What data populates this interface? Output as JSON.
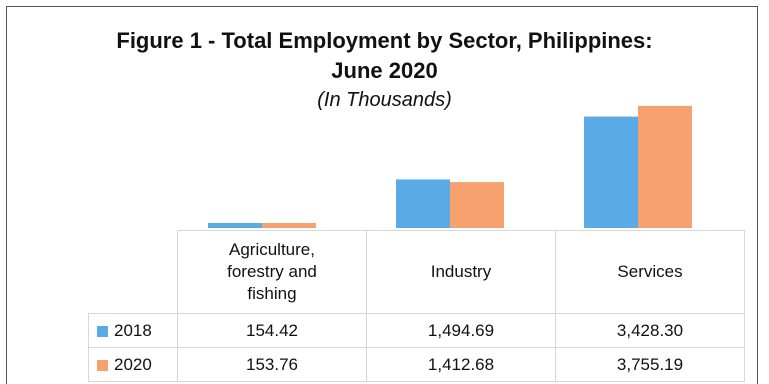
{
  "colors": {
    "s2018": "#5aaae6",
    "s2020": "#f7a26e"
  },
  "chart_data": {
    "type": "bar",
    "title": "Figure 1 - Total Employment by Sector, Philippines:",
    "title_line2": "June 2020",
    "subtitle": "(In Thousands)",
    "categories": [
      "Agriculture, forestry and fishing",
      "Industry",
      "Services"
    ],
    "category_lines": [
      [
        "Agriculture,",
        "forestry and",
        "fishing"
      ],
      [
        "Industry"
      ],
      [
        "Services"
      ]
    ],
    "series": [
      {
        "name": "2018",
        "values": [
          154.42,
          1494.69,
          3428.3
        ],
        "labels": [
          "154.42",
          "1,494.69",
          "3,428.30"
        ]
      },
      {
        "name": "2020",
        "values": [
          153.76,
          1412.68,
          3755.19
        ],
        "labels": [
          "153.76",
          "1,412.68",
          "3,755.19"
        ]
      }
    ],
    "ylim": [
      0,
      4000
    ],
    "legend": "data-table",
    "grid": false
  }
}
